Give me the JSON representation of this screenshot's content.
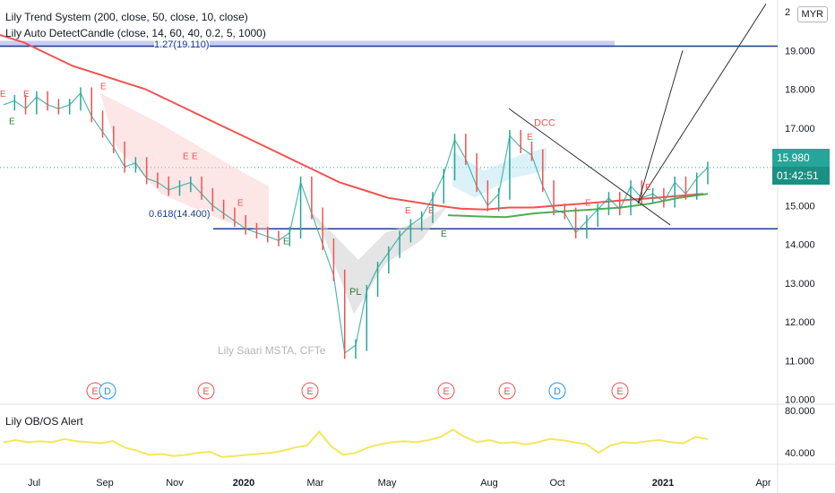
{
  "legend": {
    "trend_system": "Lily Trend System (200, close, 50, close, 10, close)",
    "auto_detect": "Lily Auto DetectCandle (close, 14, 60, 40, 0.2, 5, 1000)",
    "oscillator": "Lily OB/OS Alert"
  },
  "currency": "MYR",
  "watermark": "Lily Saari  MSTA, CFTe",
  "last_price": "15.980",
  "countdown": "01:42:51",
  "colors": {
    "up": "#26a69a",
    "down": "#ef5350",
    "ma200": "#ef5350",
    "ma50": "#f2e85a",
    "ma10": "#4caf50",
    "fib": "#1e3d8c",
    "teal": "#26a69a"
  },
  "chart_data": {
    "type": "line",
    "x_tick_labels": [
      "Jul",
      "Sep",
      "Nov",
      "2020",
      "Mar",
      "May",
      "Aug",
      "Oct",
      "2021",
      "Apr"
    ],
    "y_tick_labels": [
      "10.000",
      "11.000",
      "12.000",
      "13.000",
      "14.000",
      "15.000",
      "16.000",
      "17.000",
      "18.000",
      "19.000",
      "2"
    ],
    "ylim": [
      9.9,
      20.3
    ],
    "fib_levels": [
      {
        "label": "1.27(19.110)",
        "value": 19.11
      },
      {
        "label": "0.618(14.400)",
        "value": 14.4
      }
    ],
    "pattern_labels": {
      "dcc": "DCC",
      "pl": "PL",
      "e": "E"
    },
    "event_markers": [
      "E",
      "D",
      "E",
      "E",
      "E",
      "E",
      "D",
      "E"
    ],
    "series": [
      {
        "values": [
          17.6,
          17.7,
          17.5,
          17.8,
          17.6,
          17.5,
          17.6,
          17.9,
          17.3,
          16.9,
          16.5,
          16.0,
          16.1,
          15.7,
          15.6,
          15.4,
          15.5,
          15.6,
          15.3,
          15.0,
          14.8,
          14.6,
          14.4,
          14.3,
          14.2,
          14.1,
          14.3,
          15.6,
          14.8,
          14.0,
          13.2,
          11.2,
          11.4,
          12.8,
          13.4,
          13.8,
          14.2,
          14.5,
          14.7,
          15.2,
          15.8,
          16.7,
          16.2,
          15.5,
          15.0,
          15.3,
          16.8,
          16.5,
          16.3,
          15.5,
          14.9,
          14.8,
          14.3,
          14.6,
          14.9,
          15.2,
          14.9,
          15.5,
          15.2,
          15.3,
          15.1,
          15.6,
          15.3,
          15.7,
          15.98
        ]
      },
      {
        "name": "200",
        "values": [
          19.4,
          19.2,
          18.9,
          18.6,
          18.4,
          18.2,
          18.0,
          17.7,
          17.4,
          17.1,
          16.8,
          16.5,
          16.2,
          15.9,
          15.6,
          15.4,
          15.2,
          15.1,
          15.0,
          14.92,
          14.9,
          14.95,
          14.95,
          15.0,
          15.05,
          15.1,
          15.15,
          15.2,
          15.25,
          15.3
        ]
      },
      {
        "name": "50",
        "values": [
          14.75,
          14.72,
          14.7,
          14.8,
          14.85,
          14.9,
          14.95,
          15.05,
          15.2,
          15.3
        ]
      },
      {
        "name": "RSI",
        "values": [
          50,
          52,
          50,
          51,
          50,
          53,
          51,
          50,
          49,
          51,
          45,
          42,
          38,
          39,
          37,
          38,
          40,
          41,
          36,
          37,
          38,
          39,
          40,
          42,
          45,
          47,
          60,
          46,
          38,
          40,
          45,
          48,
          50,
          51,
          50,
          52,
          55,
          62,
          55,
          50,
          52,
          49,
          50,
          48,
          50,
          53,
          52,
          50,
          48,
          40,
          47,
          50,
          49,
          51,
          52,
          50,
          49,
          55,
          53
        ]
      }
    ],
    "osc_tick_labels": [
      "80.000",
      "40.000"
    ],
    "osc_ylim": [
      30,
      85
    ]
  }
}
